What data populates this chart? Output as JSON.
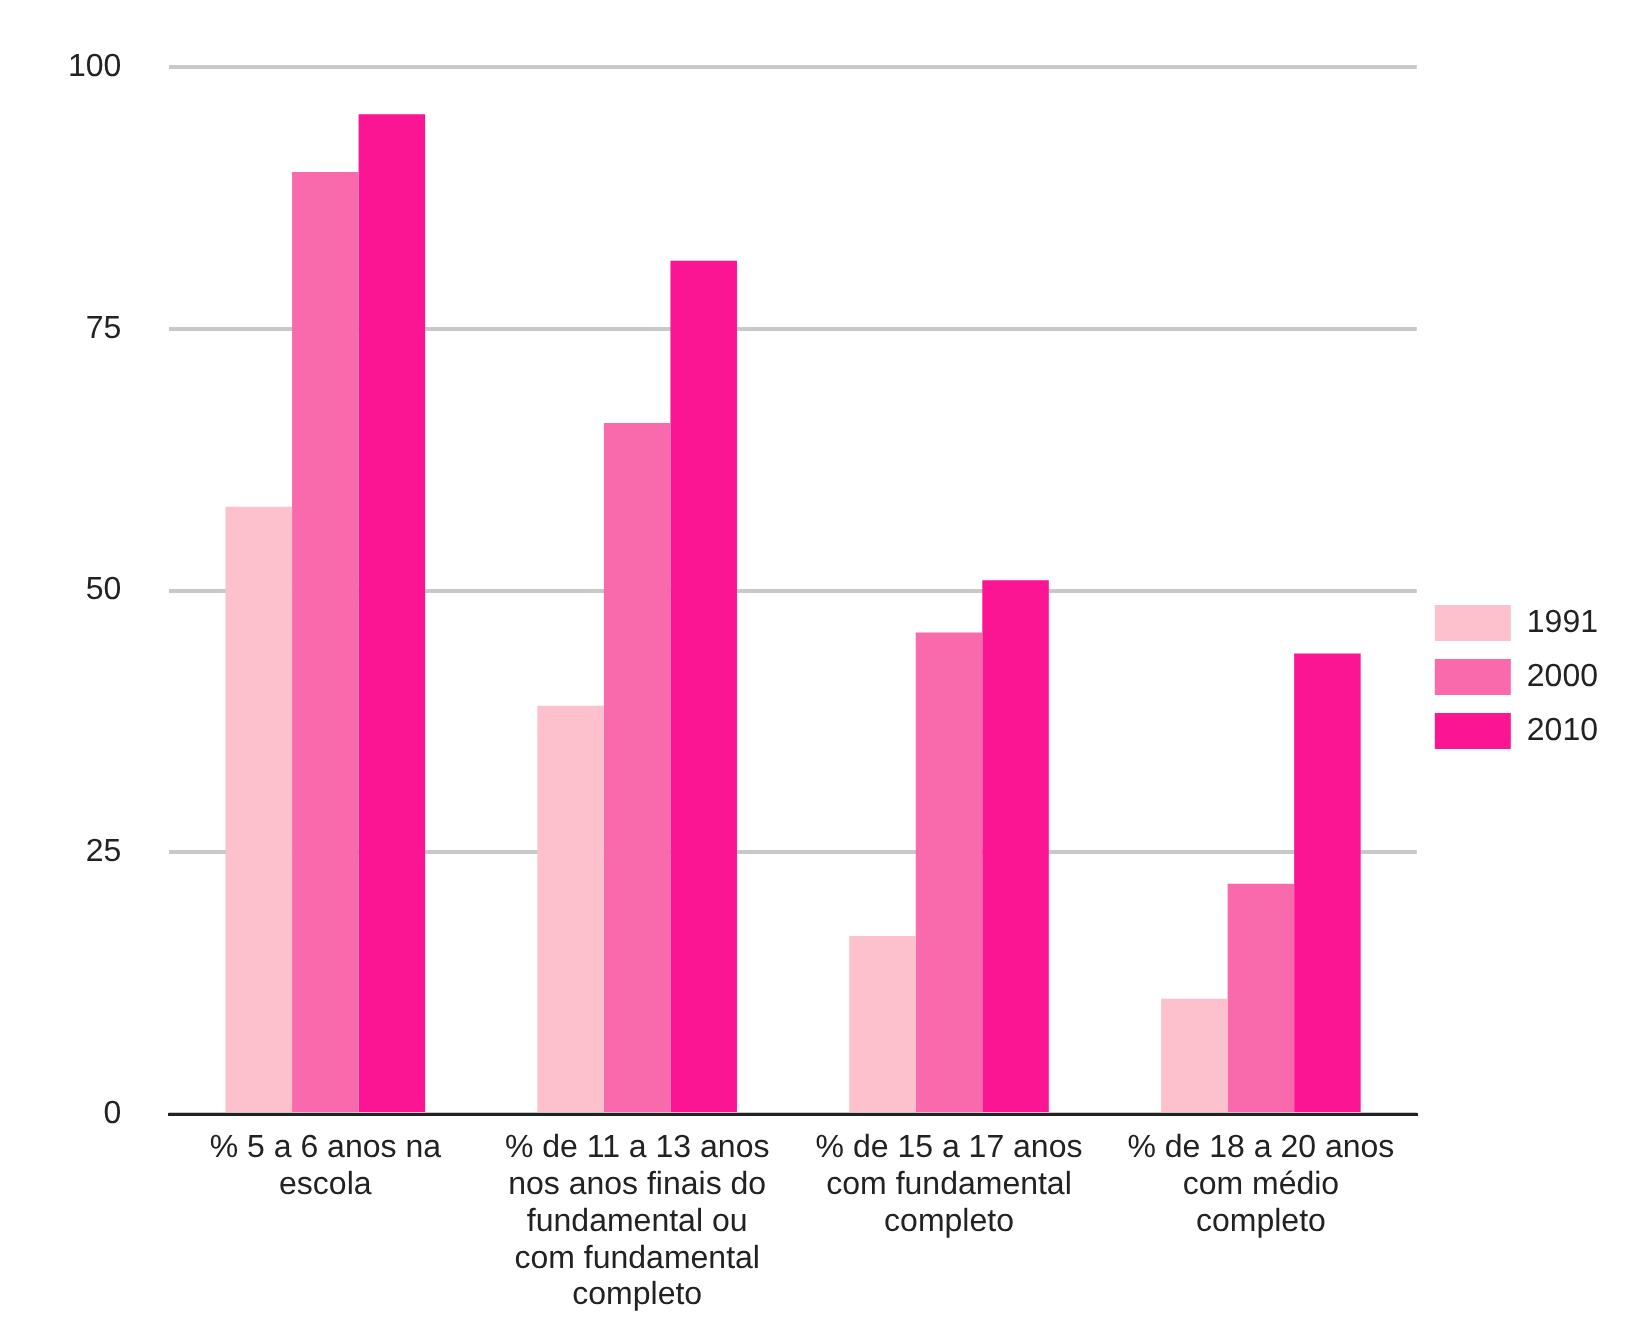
{
  "chart_data": {
    "type": "bar",
    "categories": [
      "% 5 a 6 anos na escola",
      "% de 11 a 13 anos nos anos finais do fundamental ou com fundamental completo",
      "% de 15 a 17 anos com fundamental completo",
      "% de 18 a 20 anos com médio completo"
    ],
    "series": [
      {
        "name": "1991",
        "color": "#fdc1cd",
        "values": [
          58,
          39,
          17,
          11
        ]
      },
      {
        "name": "2000",
        "color": "#f86aab",
        "values": [
          90,
          66,
          46,
          22
        ]
      },
      {
        "name": "2010",
        "color": "#fc1593",
        "values": [
          95.5,
          81.5,
          51,
          44
        ]
      }
    ],
    "ylim": [
      0,
      100
    ],
    "yticks": [
      0,
      25,
      50,
      75,
      100
    ],
    "grid": "y",
    "legend": "right"
  }
}
